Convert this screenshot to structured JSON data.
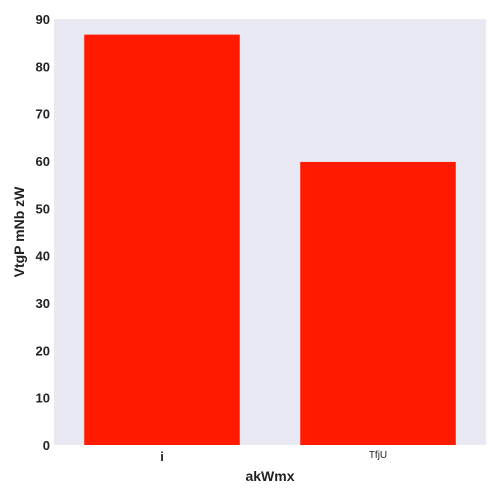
{
  "chart_data": {
    "type": "bar",
    "categories": [
      "i",
      "TfjU"
    ],
    "values": [
      86.7,
      59.8
    ],
    "title": "",
    "xlabel": "akWmx",
    "ylabel": "VtgP mNb zW",
    "ylim": [
      0,
      90
    ],
    "yticks": [
      "0",
      "10",
      "20",
      "30",
      "40",
      "50",
      "60",
      "70",
      "80",
      "90"
    ],
    "grid": false,
    "colors": {
      "bar": "#ff1a00",
      "plot_background": "#e9e9f3"
    }
  }
}
